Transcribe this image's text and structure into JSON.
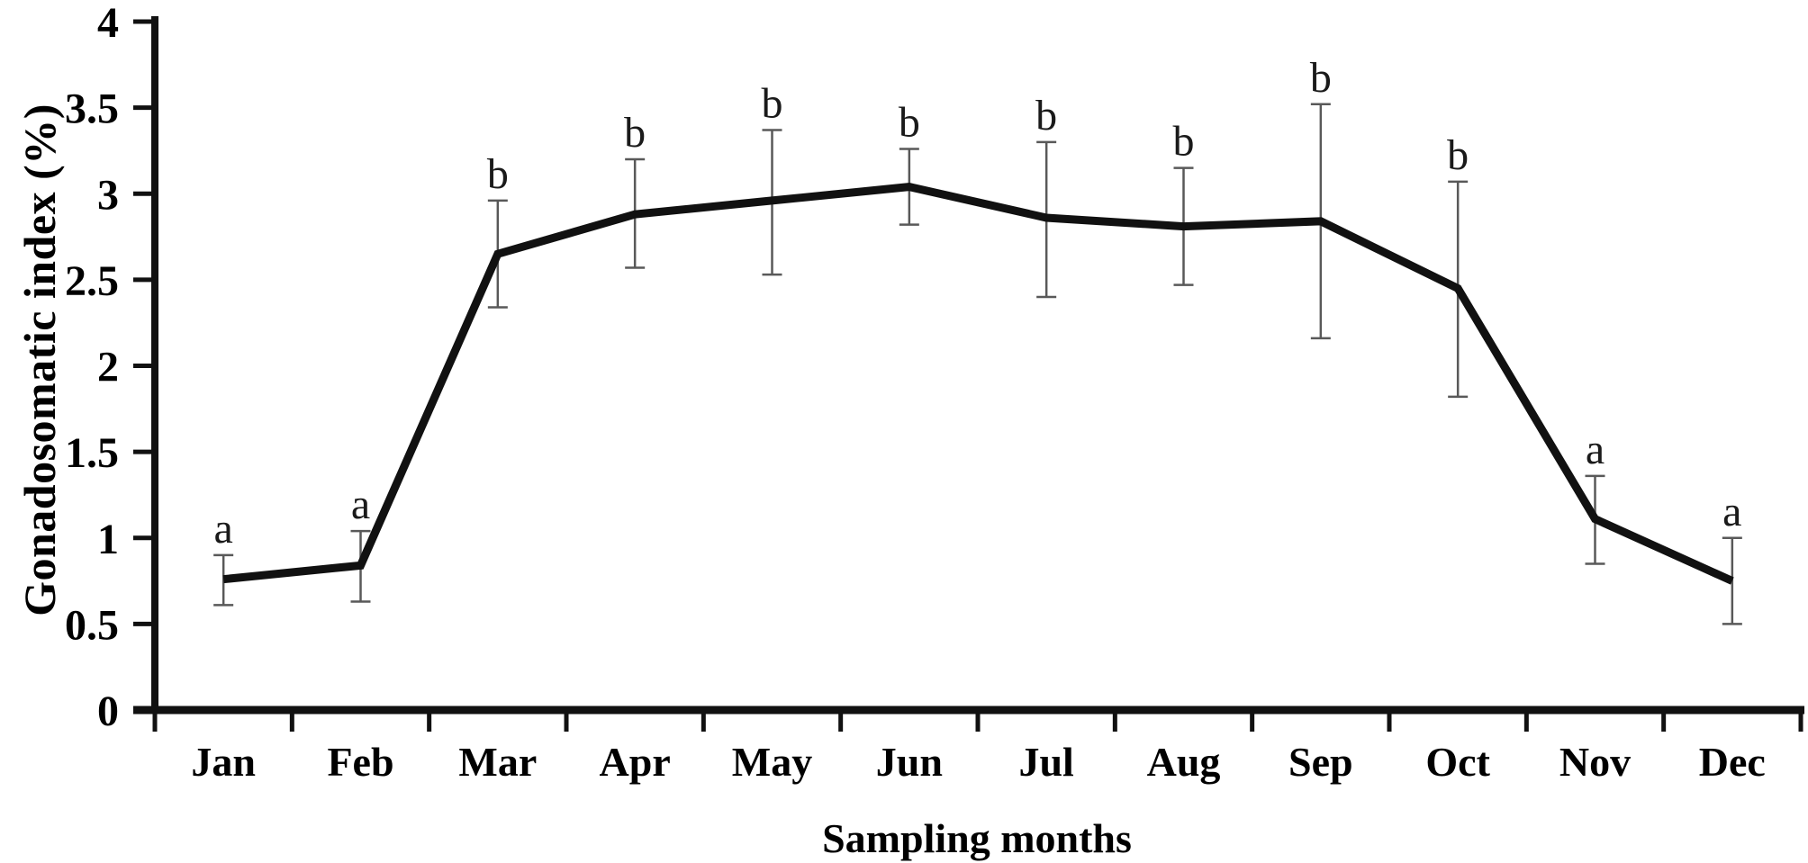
{
  "chart_data": {
    "type": "line",
    "title": "",
    "xlabel": "Sampling months",
    "ylabel": "Gonadosomatic index (%)",
    "categories": [
      "Jan",
      "Feb",
      "Mar",
      "Apr",
      "May",
      "Jun",
      "Jul",
      "Aug",
      "Sep",
      "Oct",
      "Nov",
      "Dec"
    ],
    "series": [
      {
        "name": "Gonadosomatic index",
        "values": [
          0.76,
          0.84,
          2.65,
          2.88,
          2.96,
          3.04,
          2.86,
          2.81,
          2.84,
          2.45,
          1.11,
          0.75
        ],
        "error_low": [
          0.61,
          0.63,
          2.34,
          2.57,
          2.53,
          2.82,
          2.4,
          2.47,
          2.16,
          1.82,
          0.85,
          0.5
        ],
        "error_high": [
          0.9,
          1.04,
          2.96,
          3.2,
          3.37,
          3.26,
          3.3,
          3.15,
          3.52,
          3.07,
          1.36,
          1.0
        ],
        "sig_letters": [
          "a",
          "a",
          "b",
          "b",
          "b",
          "b",
          "b",
          "b",
          "b",
          "b",
          "a",
          "a"
        ]
      }
    ],
    "ylim": [
      0,
      4
    ],
    "ytick_labels": [
      "0",
      "0.5",
      "1",
      "1.5",
      "2",
      "2.5",
      "3",
      "3.5",
      "4"
    ],
    "grid": false,
    "legend_position": "none",
    "line_color": "#111111",
    "error_bar_color": "#595959",
    "axis_color": "#111111"
  }
}
